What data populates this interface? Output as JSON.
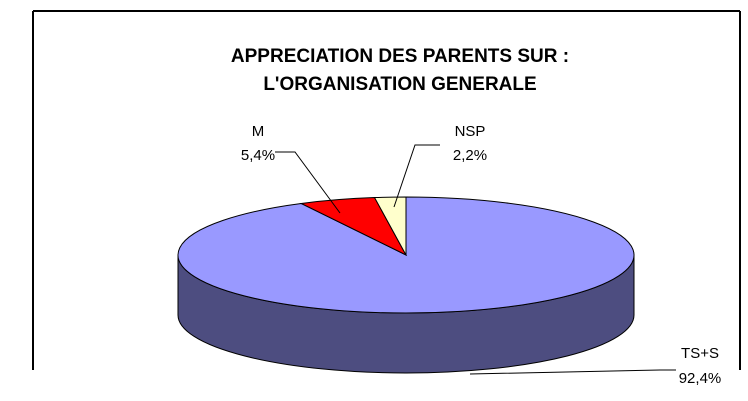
{
  "chart_data": {
    "type": "pie3d",
    "title": [
      "APPRECIATION DES PARENTS SUR :",
      "L'ORGANISATION GENERALE"
    ],
    "categories": [
      "TS+S",
      "M",
      "NSP"
    ],
    "values": [
      92.4,
      5.4,
      2.2
    ],
    "value_labels": [
      "92,4%",
      "5,4%",
      "2,2%"
    ],
    "colors": [
      "#9999ff",
      "#ff0000",
      "#ffffcc"
    ],
    "side_colors": [
      "#4d4d80",
      "#800000",
      "#80805f"
    ]
  }
}
